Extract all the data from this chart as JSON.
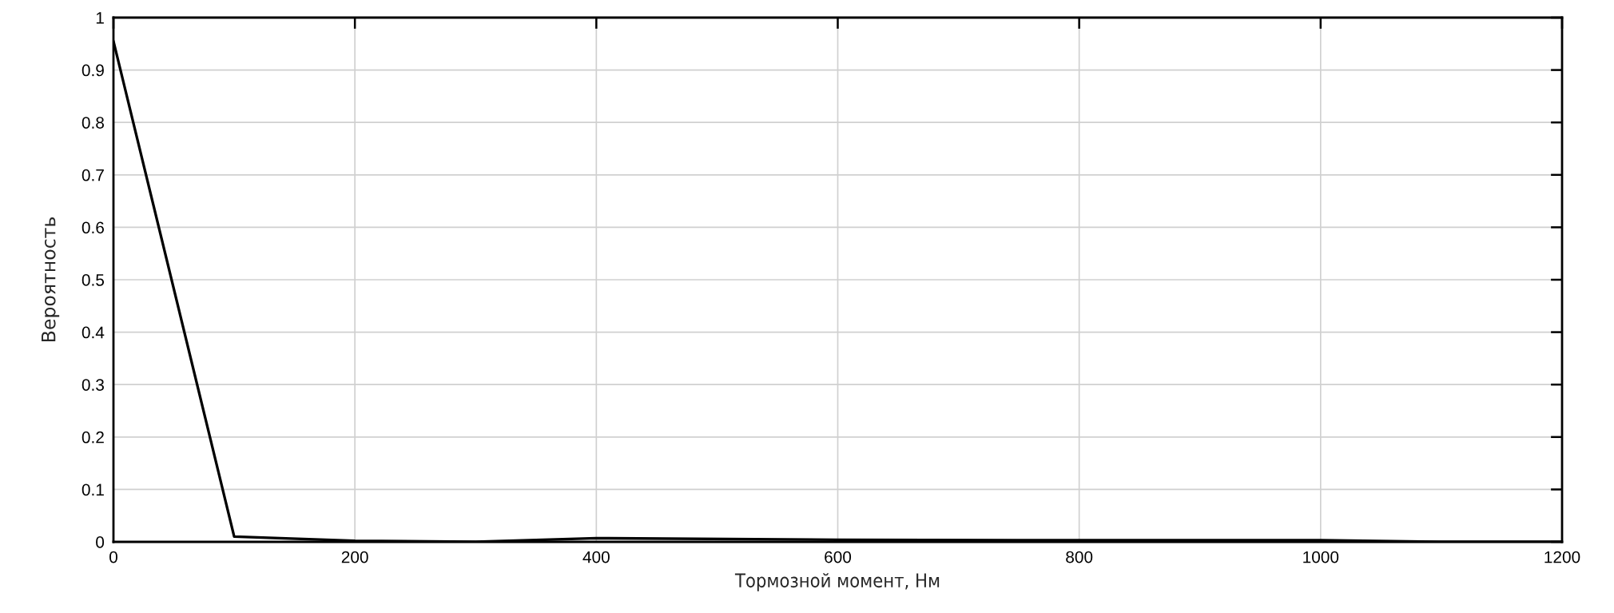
{
  "chart_data": {
    "type": "line",
    "xlabel": "Тормозной момент, Нм",
    "ylabel": "Вероятность",
    "x": [
      0,
      100,
      200,
      300,
      400,
      600,
      800,
      1000,
      1100,
      1200
    ],
    "series": [
      {
        "color": "#000000",
        "values": [
          0.955,
          0.01,
          0.002,
          0.0,
          0.007,
          0.004,
          0.003,
          0.003,
          0.0,
          0.0
        ]
      }
    ],
    "xlim": [
      0,
      1200
    ],
    "xticks": [
      0,
      200,
      400,
      600,
      800,
      1000,
      1200
    ],
    "ylim": [
      0,
      1
    ],
    "yticks": [
      0,
      0.1,
      0.2,
      0.3,
      0.4,
      0.5,
      0.6,
      0.7,
      0.8,
      0.9,
      1
    ],
    "grid": true,
    "line_style": "solid",
    "marker": "none"
  }
}
